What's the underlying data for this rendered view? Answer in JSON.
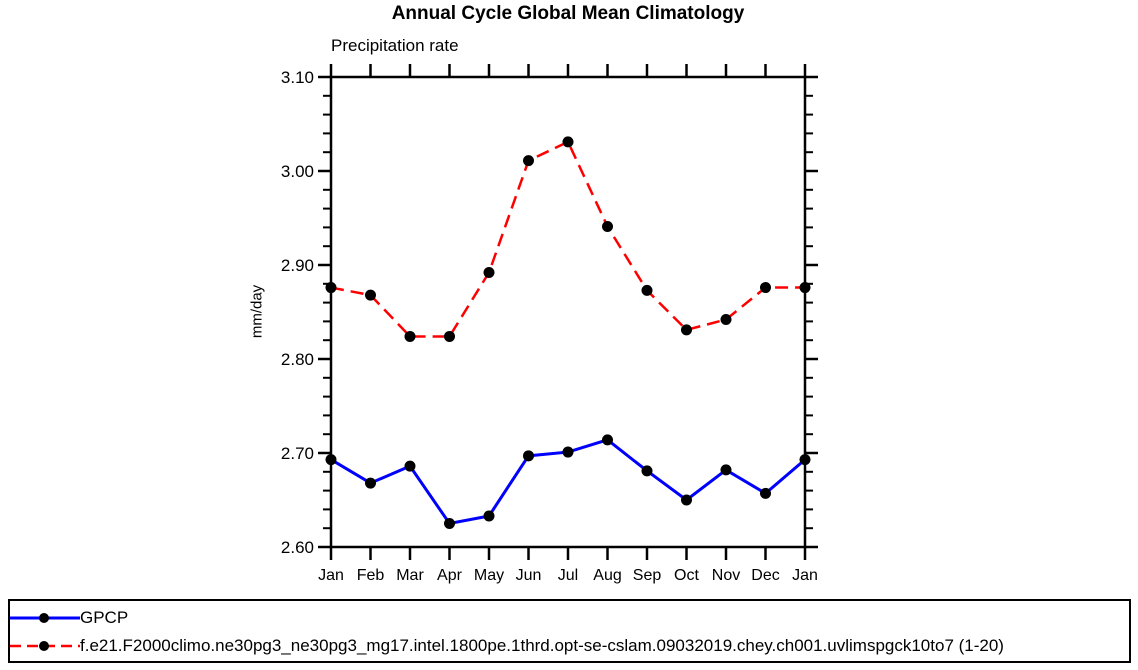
{
  "chart_data": {
    "type": "line",
    "title": "Annual Cycle Global Mean Climatology",
    "subtitle": "Precipitation rate",
    "ylabel": "mm/day",
    "xlabel": "",
    "categories": [
      "Jan",
      "Feb",
      "Mar",
      "Apr",
      "May",
      "Jun",
      "Jul",
      "Aug",
      "Sep",
      "Oct",
      "Nov",
      "Dec",
      "Jan"
    ],
    "ylim": [
      2.6,
      3.1
    ],
    "ytick_major": 0.1,
    "ytick_minor": 0.02,
    "ytick_label_format": "2dp",
    "grid": false,
    "frame": "closed-box-with-outward-ticks",
    "legend_position": "bottom-full-width-box",
    "marker": "filled-circle",
    "marker_color": "#000000",
    "axis_color": "#000000",
    "series": [
      {
        "name": "GPCP",
        "color": "#0000ff",
        "style": "solid",
        "values": [
          2.693,
          2.668,
          2.686,
          2.625,
          2.633,
          2.697,
          2.701,
          2.714,
          2.681,
          2.65,
          2.682,
          2.657,
          2.693
        ]
      },
      {
        "name": "f.e21.F2000climo.ne30pg3_ne30pg3_mg17.intel.1800pe.1thrd.opt-se-cslam.09032019.chey.ch001.uvlimspgck10to7 (1-20)",
        "color": "#ff0000",
        "style": "dashed",
        "values": [
          2.876,
          2.868,
          2.824,
          2.824,
          2.892,
          3.011,
          3.031,
          2.941,
          2.873,
          2.831,
          2.842,
          2.876,
          2.876
        ]
      }
    ]
  }
}
